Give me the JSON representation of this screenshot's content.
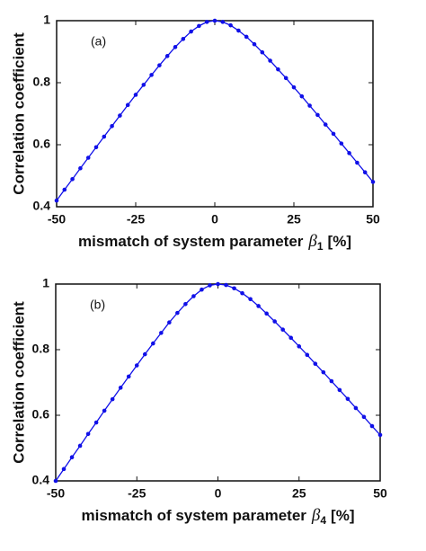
{
  "chart_data": [
    {
      "type": "line",
      "annotation": "(a)",
      "ylabel": "Correlation coefficient",
      "xlabel": {
        "text": "mismatch of system parameter",
        "symbol": "β",
        "subscript": "1",
        "unit": "[%]"
      },
      "x": [
        -50,
        -47.5,
        -45,
        -42.5,
        -40,
        -37.5,
        -35,
        -32.5,
        -30,
        -27.5,
        -25,
        -22.5,
        -20,
        -17.5,
        -15,
        -12.5,
        -10,
        -7.5,
        -5,
        -2.5,
        0,
        2.5,
        5,
        7.5,
        10,
        12.5,
        15,
        17.5,
        20,
        22.5,
        25,
        27.5,
        30,
        32.5,
        35,
        37.5,
        40,
        42.5,
        45,
        47.5,
        50
      ],
      "series": [
        {
          "color": "#1010e8",
          "values": [
            0.42,
            0.455,
            0.489,
            0.524,
            0.558,
            0.592,
            0.626,
            0.66,
            0.694,
            0.728,
            0.761,
            0.793,
            0.825,
            0.856,
            0.886,
            0.915,
            0.941,
            0.965,
            0.983,
            0.996,
            1,
            0.996,
            0.985,
            0.968,
            0.948,
            0.924,
            0.898,
            0.871,
            0.843,
            0.815,
            0.785,
            0.756,
            0.726,
            0.696,
            0.665,
            0.635,
            0.604,
            0.573,
            0.542,
            0.511,
            0.48
          ]
        }
      ],
      "xlim": [
        -50,
        50
      ],
      "xticks": [
        -50,
        -25,
        0,
        25,
        50
      ],
      "ylim": [
        0.4,
        1
      ],
      "yticks": [
        0.4,
        0.6,
        0.8,
        1
      ]
    },
    {
      "type": "line",
      "annotation": "(b)",
      "ylabel": "Correlation coefficient",
      "xlabel": {
        "text": "mismatch of system parameter",
        "symbol": "β",
        "subscript": "4",
        "unit": "[%]"
      },
      "x": [
        -50,
        -47.5,
        -45,
        -42.5,
        -40,
        -37.5,
        -35,
        -32.5,
        -30,
        -27.5,
        -25,
        -22.5,
        -20,
        -17.5,
        -15,
        -12.5,
        -10,
        -7.5,
        -5,
        -2.5,
        0,
        2.5,
        5,
        7.5,
        10,
        12.5,
        15,
        17.5,
        20,
        22.5,
        25,
        27.5,
        30,
        32.5,
        35,
        37.5,
        40,
        42.5,
        45,
        47.5,
        50
      ],
      "series": [
        {
          "color": "#1010e8",
          "values": [
            0.4,
            0.436,
            0.472,
            0.507,
            0.543,
            0.578,
            0.614,
            0.649,
            0.684,
            0.718,
            0.752,
            0.786,
            0.819,
            0.851,
            0.883,
            0.912,
            0.939,
            0.963,
            0.983,
            0.996,
            1,
            0.997,
            0.987,
            0.972,
            0.954,
            0.933,
            0.91,
            0.886,
            0.861,
            0.836,
            0.81,
            0.784,
            0.757,
            0.731,
            0.704,
            0.677,
            0.65,
            0.622,
            0.595,
            0.567,
            0.54
          ]
        }
      ],
      "xlim": [
        -50,
        50
      ],
      "xticks": [
        -50,
        -25,
        0,
        25,
        50
      ],
      "ylim": [
        0.4,
        1
      ],
      "yticks": [
        0.4,
        0.6,
        0.8,
        1
      ]
    }
  ]
}
